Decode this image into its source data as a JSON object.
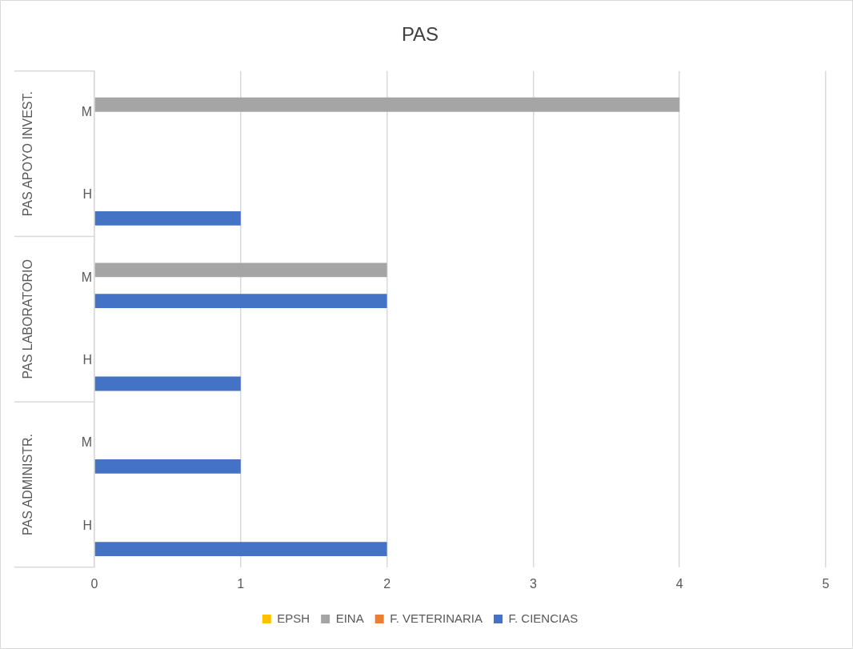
{
  "chart_data": {
    "type": "bar",
    "orientation": "horizontal",
    "title": "PAS",
    "categories": [
      "M",
      "H",
      "M",
      "H",
      "M",
      "H"
    ],
    "series": [
      {
        "name": "EPSH",
        "color": "#ffc000",
        "values": [
          null,
          null,
          null,
          null,
          null,
          null
        ]
      },
      {
        "name": "EINA",
        "color": "#a5a5a5",
        "values": [
          4,
          null,
          2,
          null,
          null,
          null
        ]
      },
      {
        "name": "F. VETERINARIA",
        "color": "#ed7d31",
        "values": [
          null,
          null,
          null,
          null,
          null,
          null
        ]
      },
      {
        "name": "F. CIENCIAS",
        "color": "#4472c4",
        "values": [
          null,
          1,
          2,
          1,
          1,
          2
        ]
      }
    ],
    "annotations": [
      "PAS APOYO INVEST.",
      "PAS LABORATORIO",
      "PAS ADMINISTR."
    ],
    "xlim": [
      0,
      5
    ],
    "xticks": [
      0,
      1,
      2,
      3,
      4,
      5
    ],
    "grid": "x",
    "legend": "bottom"
  }
}
